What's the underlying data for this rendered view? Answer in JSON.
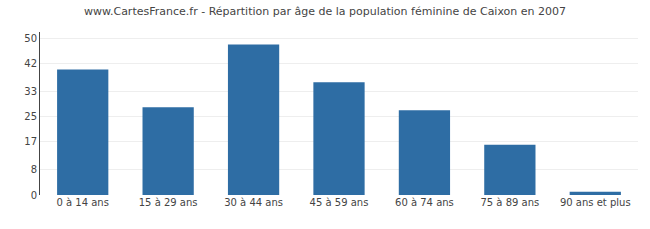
{
  "chart_data": {
    "type": "bar",
    "title": "www.CartesFrance.fr - Répartition par âge de la population féminine de Caixon en 2007",
    "categories": [
      "0 à 14 ans",
      "15 à 29 ans",
      "30 à 44 ans",
      "45 à 59 ans",
      "60 à 74 ans",
      "75 à 89 ans",
      "90 ans et plus"
    ],
    "values": [
      40,
      28,
      48,
      36,
      27,
      16,
      1
    ],
    "color": "#2e6da4",
    "ylim": [
      0,
      52
    ],
    "yticks": [
      0,
      8,
      17,
      25,
      33,
      42,
      50
    ],
    "grid": true
  }
}
